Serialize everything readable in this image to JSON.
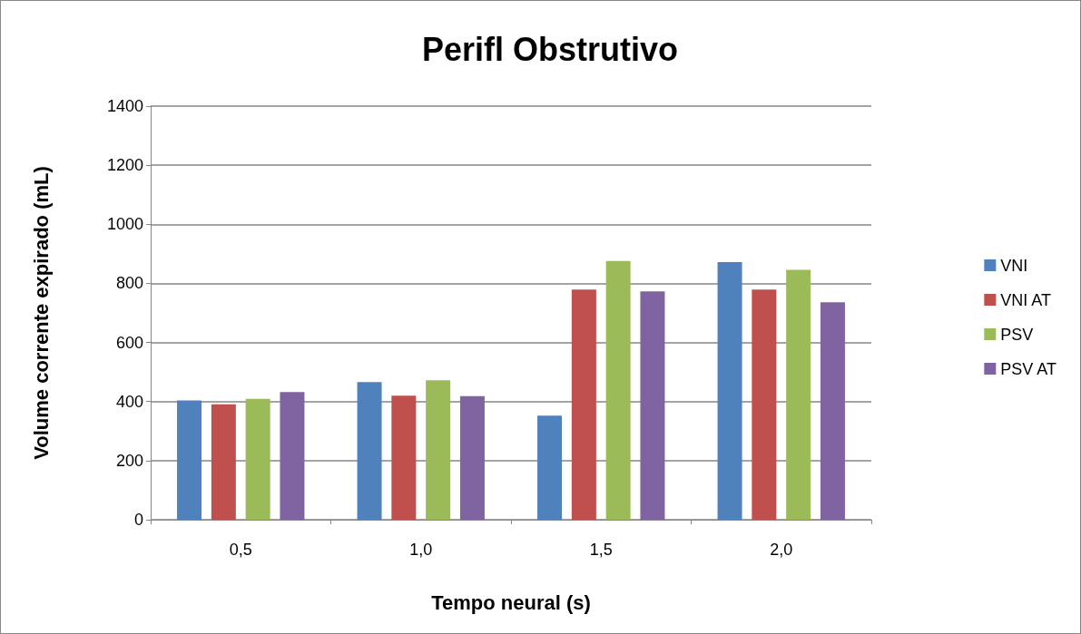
{
  "chart_data": {
    "type": "bar",
    "title": "Perifl Obstrutivo",
    "xlabel": "Tempo neural (s)",
    "ylabel": "Volume corrente expirado (mL)",
    "categories": [
      "0,5",
      "1,0",
      "1,5",
      "2,0"
    ],
    "series": [
      {
        "name": "VNI",
        "color": "#4f81bd",
        "values": [
          404,
          466,
          352,
          872
        ]
      },
      {
        "name": "VNI AT",
        "color": "#c0504d",
        "values": [
          391,
          420,
          779,
          779
        ]
      },
      {
        "name": "PSV",
        "color": "#9bbb59",
        "values": [
          409,
          472,
          876,
          846
        ]
      },
      {
        "name": "PSV AT",
        "color": "#8064a2",
        "values": [
          432,
          418,
          773,
          736
        ]
      }
    ],
    "ylim": [
      0,
      1400
    ],
    "yticks": [
      0,
      200,
      400,
      600,
      800,
      1000,
      1200,
      1400
    ],
    "grid": "y",
    "legend": "right"
  }
}
